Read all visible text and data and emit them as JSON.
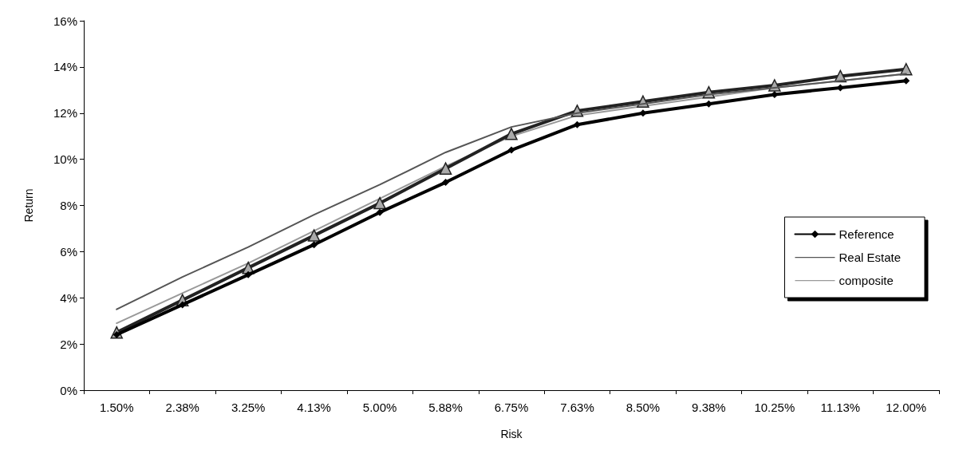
{
  "chart_data": {
    "type": "line",
    "xlabel": "Risk",
    "ylabel": "Return",
    "categories": [
      "1.50%",
      "2.38%",
      "3.25%",
      "4.13%",
      "5.00%",
      "5.88%",
      "6.75%",
      "7.63%",
      "8.50%",
      "9.38%",
      "10.25%",
      "11.13%",
      "12.00%"
    ],
    "series": [
      {
        "name": "Reference",
        "color": "#000000",
        "marker": "diamond",
        "values": [
          2.4,
          3.7,
          5.0,
          6.3,
          7.7,
          9.0,
          10.4,
          11.5,
          12.0,
          12.4,
          12.8,
          13.1,
          13.4
        ]
      },
      {
        "name": "Real Estate",
        "color": "#555555",
        "marker": "none",
        "values": [
          3.5,
          4.9,
          6.2,
          7.6,
          8.9,
          10.3,
          11.4,
          12.0,
          12.4,
          12.8,
          13.1,
          13.4,
          13.7
        ]
      },
      {
        "color": "#222222",
        "marker": "triangle",
        "values": [
          2.5,
          3.9,
          5.3,
          6.7,
          8.1,
          9.6,
          11.1,
          12.1,
          12.5,
          12.9,
          13.2,
          13.6,
          13.9
        ]
      },
      {
        "name": "composite",
        "color": "#999999",
        "marker": "none",
        "values": [
          2.9,
          4.2,
          5.5,
          6.9,
          8.3,
          9.7,
          11.0,
          11.9,
          12.3,
          12.7,
          13.1,
          13.4,
          13.7
        ]
      }
    ],
    "ylim": [
      0,
      16
    ],
    "yticks": [
      {
        "value": 0,
        "label": "0%"
      },
      {
        "value": 2,
        "label": "2%"
      },
      {
        "value": 4,
        "label": "4%"
      },
      {
        "value": 6,
        "label": "6%"
      },
      {
        "value": 8,
        "label": "8%"
      },
      {
        "value": 10,
        "label": "10%"
      },
      {
        "value": 12,
        "label": "12%"
      },
      {
        "value": 14,
        "label": "14%"
      },
      {
        "value": 16,
        "label": "16%"
      }
    ],
    "grid": false,
    "legend": "right"
  }
}
